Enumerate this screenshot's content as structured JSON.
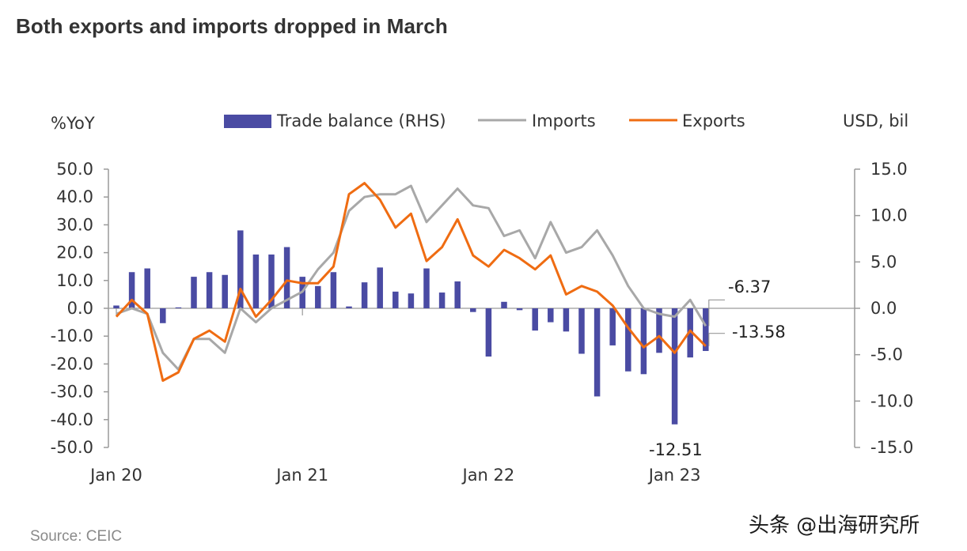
{
  "title": "Both exports and imports dropped in March",
  "source": "Source: CEIC",
  "watermark": "头条 @出海研究所",
  "chart_data": {
    "type": "bar+line",
    "left_axis_label": "%YoY",
    "right_axis_label": "USD, bil",
    "left_ylim": [
      -50,
      50
    ],
    "right_ylim": [
      -15,
      15
    ],
    "left_ticks": [
      "50.0",
      "40.0",
      "30.0",
      "20.0",
      "10.0",
      "0.0",
      "-10.0",
      "-20.0",
      "-30.0",
      "-40.0",
      "-50.0"
    ],
    "left_tick_values": [
      50,
      40,
      30,
      20,
      10,
      0,
      -10,
      -20,
      -30,
      -40,
      -50
    ],
    "right_ticks": [
      "15.0",
      "10.0",
      "5.0",
      "0.0",
      "-5.0",
      "-10.0",
      "-15.0"
    ],
    "right_tick_values": [
      15,
      10,
      5,
      0,
      -5,
      -10,
      -15
    ],
    "x_tick_labels": [
      "Jan 20",
      "Jan 21",
      "Jan 22",
      "Jan 23"
    ],
    "x_tick_index": [
      0,
      12,
      24,
      36
    ],
    "months": 39,
    "legend": [
      {
        "name": "Trade balance (RHS)",
        "kind": "bar",
        "color": "#4a4ba3"
      },
      {
        "name": "Imports",
        "kind": "line",
        "color": "#a8a8a8"
      },
      {
        "name": "Exports",
        "kind": "line",
        "color": "#ef6c12"
      }
    ],
    "series": [
      {
        "name": "Trade balance (RHS)",
        "axis": "right",
        "color": "#4a4ba3",
        "values": [
          0.3,
          3.9,
          4.3,
          -1.6,
          0.1,
          3.4,
          3.9,
          3.6,
          8.4,
          5.8,
          5.8,
          6.6,
          3.4,
          2.4,
          3.9,
          0.2,
          2.8,
          4.4,
          1.8,
          1.6,
          4.3,
          1.7,
          2.9,
          -0.4,
          -5.2,
          0.7,
          -0.2,
          -2.4,
          -1.5,
          -2.5,
          -4.9,
          -9.5,
          -4.0,
          -6.8,
          -7.1,
          -4.8,
          -12.51,
          -5.3,
          -4.6
        ]
      },
      {
        "name": "Imports",
        "axis": "left",
        "color": "#a8a8a8",
        "values": [
          -2,
          0,
          -2,
          -16,
          -22,
          -11,
          -11,
          -16,
          0,
          -5,
          0,
          3,
          6,
          14,
          20,
          35,
          40,
          41,
          41,
          44,
          31,
          37,
          43,
          37,
          36,
          26,
          28,
          18,
          31,
          20,
          22,
          28,
          19,
          8,
          0,
          -2,
          -3,
          3,
          -6.37
        ]
      },
      {
        "name": "Exports",
        "axis": "left",
        "color": "#ef6c12",
        "values": [
          -3,
          3,
          -2,
          -26,
          -23,
          -11,
          -8,
          -12,
          7,
          -3,
          3,
          10,
          9,
          9,
          15,
          41,
          45,
          39,
          29,
          34,
          17,
          22,
          32,
          19,
          15,
          21,
          18,
          14,
          19,
          5,
          8,
          6,
          1,
          -7,
          -14,
          -10,
          -16,
          -8,
          -13.58
        ]
      }
    ],
    "annotations": {
      "imports_last": "-6.37",
      "exports_last": "-13.58",
      "trade_balance_min": "-12.51"
    }
  }
}
